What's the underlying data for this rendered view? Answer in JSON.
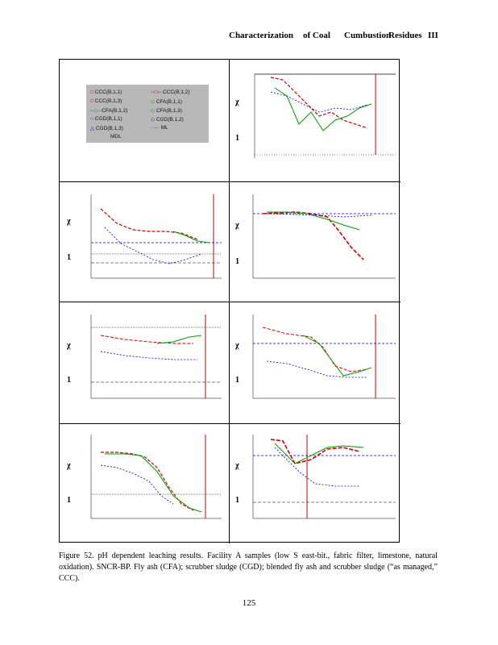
{
  "header": {
    "words": [
      "Characterization",
      "of Coal",
      "Cumbustion",
      "Residues",
      "III"
    ]
  },
  "legend": {
    "items": [
      {
        "label": "CCC(B,1,1)",
        "color": "#cc0000",
        "marker": "square"
      },
      {
        "label": "CCC(B,1,2)",
        "color": "#cc0000",
        "marker": "dash"
      },
      {
        "label": "CCC(B,1,3)",
        "color": "#cc0000",
        "marker": "square"
      },
      {
        "label": "CFA(B,1,1)",
        "color": "#009900",
        "marker": "diamond"
      },
      {
        "label": "CFA(B,1,2)",
        "color": "#009900",
        "marker": "line"
      },
      {
        "label": "CFA(B,1,3)",
        "color": "#009900",
        "marker": "diamond"
      },
      {
        "label": "CGD(B,1,1)",
        "color": "#0000cc",
        "marker": "circle"
      },
      {
        "label": "CGD(B,1,2)",
        "color": "#0000cc",
        "marker": "diamond"
      },
      {
        "label": "CGD(B,1,3)",
        "color": "#0000cc",
        "marker": "triangle"
      },
      {
        "label": "ML",
        "color": "#000000",
        "marker": "dotted"
      },
      {
        "label": "MDL",
        "color": "#000000",
        "marker": "none"
      }
    ]
  },
  "caption": "Figure 52. pH dependent leaching results. Facility A samples (low S east-bit., fabric filter, limestone, natural oxidation). SNCR-BP. Fly ash (CFA); scrubber sludge (CGD); blended fly ash and scrubber sludge (“as managed,” CCC).",
  "page_number": "125",
  "colors": {
    "red": "#cc0000",
    "green": "#009900",
    "blue": "#0000cc",
    "darkred": "#aa0000"
  }
}
